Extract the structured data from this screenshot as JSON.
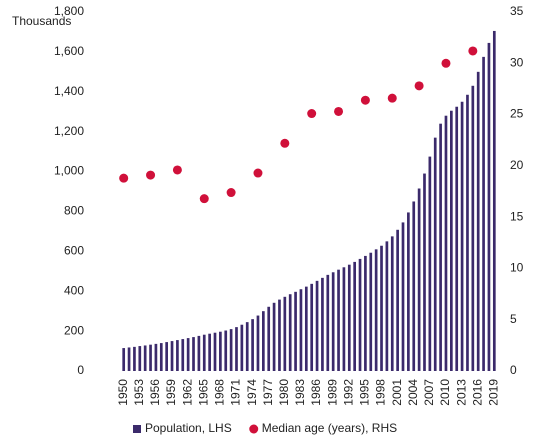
{
  "chart_data": {
    "type": "bar",
    "y_label": "Thousands",
    "categories": [
      "1950",
      null,
      null,
      "1953",
      null,
      null,
      "1956",
      null,
      null,
      "1959",
      null,
      null,
      "1962",
      null,
      null,
      "1965",
      null,
      null,
      "1968",
      null,
      null,
      "1971",
      null,
      null,
      "1974",
      null,
      null,
      "1977",
      null,
      null,
      "1980",
      null,
      null,
      "1983",
      null,
      null,
      "1986",
      null,
      null,
      "1989",
      null,
      null,
      "1992",
      null,
      null,
      "1995",
      null,
      null,
      "1998",
      null,
      null,
      "2001",
      null,
      null,
      "2004",
      null,
      null,
      "2007",
      null,
      null,
      "2010",
      null,
      null,
      "2013",
      null,
      null,
      "2016",
      null,
      null,
      "2019"
    ],
    "series": [
      {
        "name": "Population, LHS",
        "type": "bar",
        "color": "#3b2a6b",
        "axis": "y",
        "values": [
          115,
          118,
          121,
          125,
          128,
          132,
          136,
          140,
          145,
          150,
          155,
          160,
          165,
          170,
          176,
          182,
          187,
          192,
          197,
          203,
          210,
          220,
          232,
          245,
          260,
          278,
          300,
          322,
          342,
          358,
          372,
          385,
          397,
          410,
          423,
          437,
          452,
          467,
          482,
          495,
          508,
          520,
          533,
          547,
          562,
          577,
          593,
          610,
          628,
          650,
          675,
          708,
          745,
          795,
          850,
          915,
          990,
          1075,
          1170,
          1240,
          1280,
          1305,
          1325,
          1350,
          1385,
          1430,
          1500,
          1575,
          1645,
          1705
        ]
      },
      {
        "name": "Median age (years), RHS",
        "type": "scatter",
        "color": "#d0103a",
        "axis": "y2",
        "values": [
          18.8,
          null,
          null,
          null,
          null,
          19.1,
          null,
          null,
          null,
          null,
          19.6,
          null,
          null,
          null,
          null,
          16.8,
          null,
          null,
          null,
          null,
          17.4,
          null,
          null,
          null,
          null,
          19.3,
          null,
          null,
          null,
          null,
          22.2,
          null,
          null,
          null,
          null,
          25.1,
          null,
          null,
          null,
          null,
          25.3,
          null,
          null,
          null,
          null,
          26.4,
          null,
          null,
          null,
          null,
          26.6,
          null,
          null,
          null,
          null,
          27.8,
          null,
          null,
          null,
          null,
          30.0,
          null,
          null,
          null,
          null,
          31.2,
          null,
          null,
          null,
          null
        ]
      }
    ],
    "ylim": [
      0,
      1800
    ],
    "yticks": [
      0,
      200,
      400,
      600,
      800,
      {
        "value": 1000,
        "label": "1,000"
      },
      {
        "value": 1200,
        "label": "1,200"
      },
      {
        "value": 1400,
        "label": "1,400"
      },
      {
        "value": 1600,
        "label": "1,600"
      },
      {
        "value": 1800,
        "label": "1,800"
      }
    ],
    "y2lim": [
      0,
      35
    ],
    "y2ticks": [
      0,
      5,
      10,
      15,
      20,
      25,
      30,
      35
    ],
    "grid": false,
    "legend": "bottom"
  }
}
